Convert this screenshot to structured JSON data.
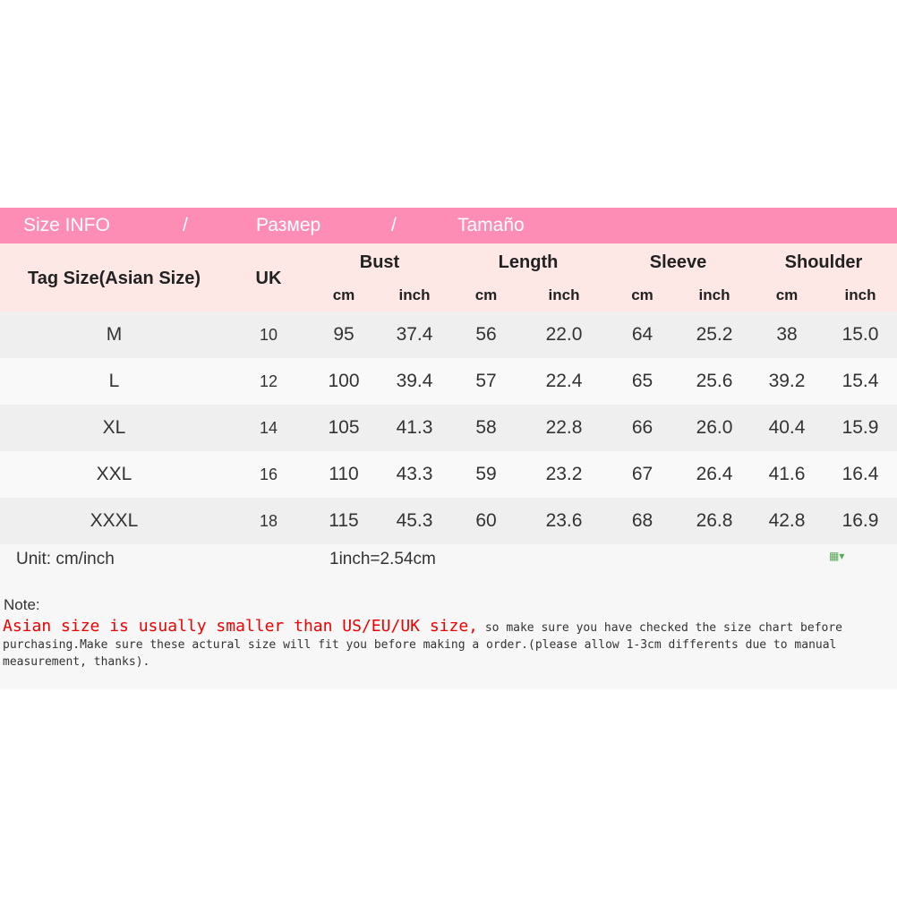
{
  "banner": {
    "en": "Size INFO",
    "sep": "/",
    "ru": "Размер",
    "es": "Tamaño"
  },
  "header": {
    "tag_size": "Tag Size(Asian Size)",
    "uk": "UK",
    "groups": [
      "Bust",
      "Length",
      "Sleeve",
      "Shoulder"
    ],
    "cm": "cm",
    "inch": "inch"
  },
  "rows": [
    [
      "M",
      "10",
      "95",
      "37.4",
      "56",
      "22.0",
      "64",
      "25.2",
      "38",
      "15.0"
    ],
    [
      "L",
      "12",
      "100",
      "39.4",
      "57",
      "22.4",
      "65",
      "25.6",
      "39.2",
      "15.4"
    ],
    [
      "XL",
      "14",
      "105",
      "41.3",
      "58",
      "22.8",
      "66",
      "26.0",
      "40.4",
      "15.9"
    ],
    [
      "XXL",
      "16",
      "110",
      "43.3",
      "59",
      "23.2",
      "67",
      "26.4",
      "41.6",
      "16.4"
    ],
    [
      "XXXL",
      "18",
      "115",
      "45.3",
      "60",
      "23.6",
      "68",
      "26.8",
      "42.8",
      "16.9"
    ]
  ],
  "footer": {
    "unit": "Unit: cm/inch",
    "conversion": "1inch=2.54cm"
  },
  "note": {
    "label": "Note:",
    "warning": "Asian size is usually smaller than US/EU/UK size,",
    "text": " so make sure you have checked the size chart before purchasing.Make sure these actural size will fit you before making a order.(please allow 1-3cm differents due to manual measurement, thanks)."
  },
  "colors": {
    "banner": "#fe8db5",
    "header": "#fde8e6",
    "warning": "#ee0000"
  }
}
